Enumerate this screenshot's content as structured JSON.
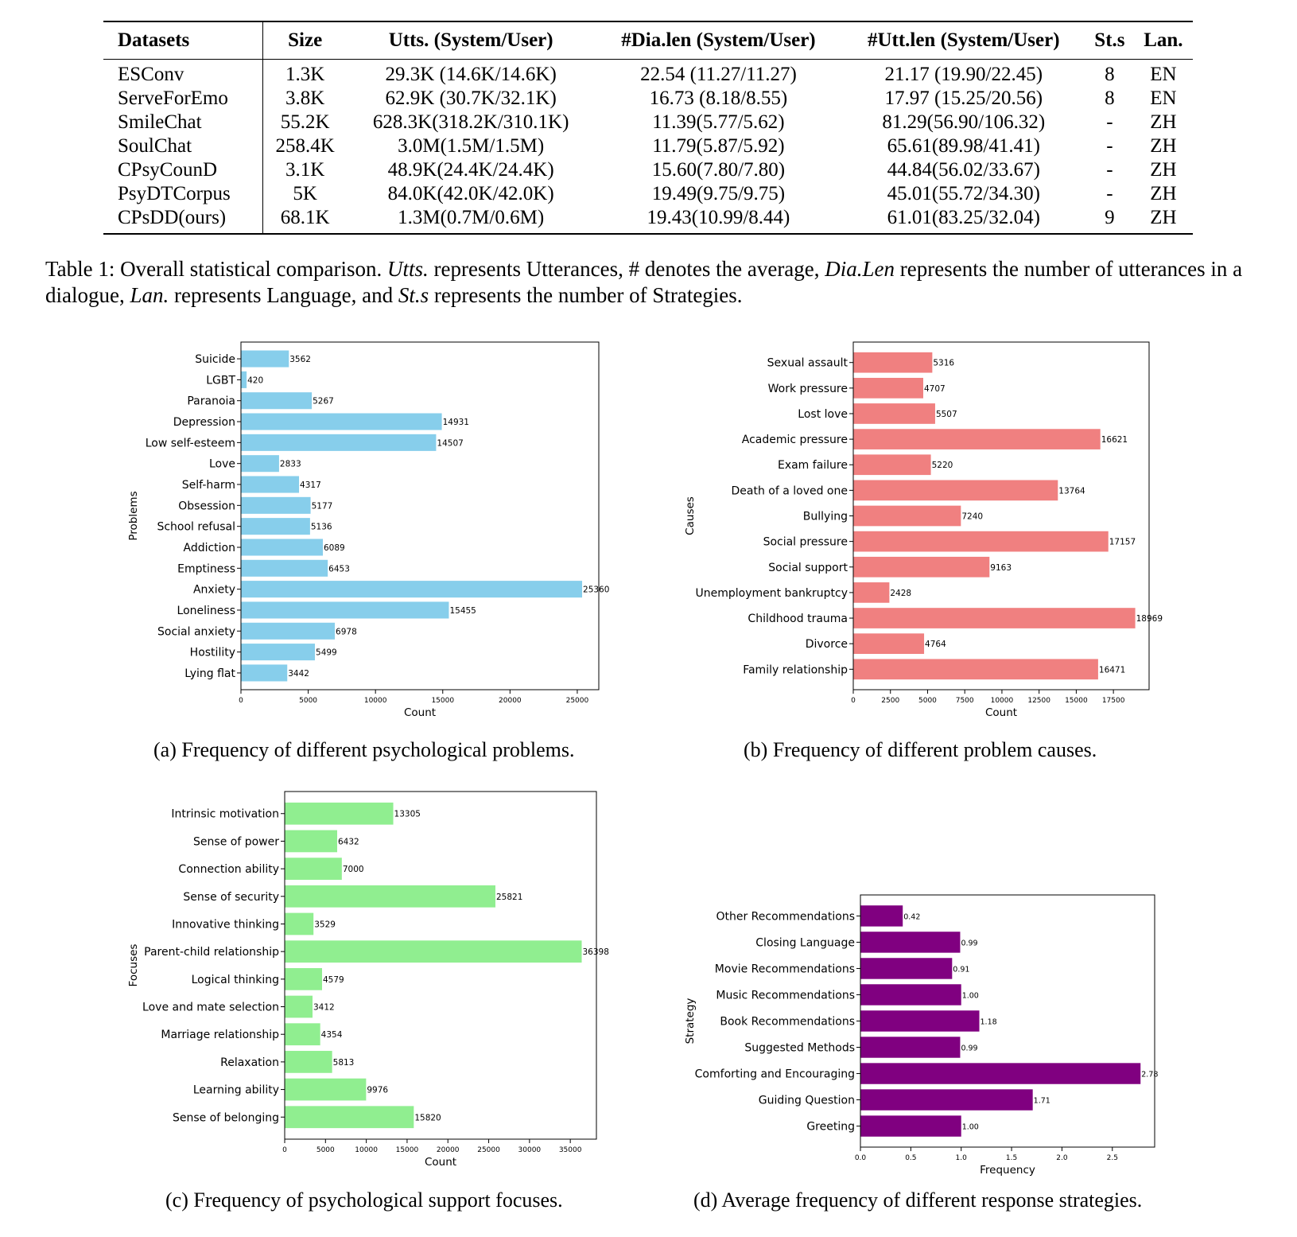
{
  "table": {
    "headers": [
      "Datasets",
      "Size",
      "Utts. (System/User)",
      "#Dia.len (System/User)",
      "#Utt.len (System/User)",
      "St.s",
      "Lan."
    ],
    "rows": [
      [
        "ESConv",
        "1.3K",
        "29.3K (14.6K/14.6K)",
        "22.54 (11.27/11.27)",
        "21.17 (19.90/22.45)",
        "8",
        "EN"
      ],
      [
        "ServeForEmo",
        "3.8K",
        "62.9K (30.7K/32.1K)",
        "16.73 (8.18/8.55)",
        "17.97 (15.25/20.56)",
        "8",
        "EN"
      ],
      [
        "SmileChat",
        "55.2K",
        "628.3K(318.2K/310.1K)",
        "11.39(5.77/5.62)",
        "81.29(56.90/106.32)",
        "-",
        "ZH"
      ],
      [
        "SoulChat",
        "258.4K",
        "3.0M(1.5M/1.5M)",
        "11.79(5.87/5.92)",
        "65.61(89.98/41.41)",
        "-",
        "ZH"
      ],
      [
        "CPsyCounD",
        "3.1K",
        "48.9K(24.4K/24.4K)",
        "15.60(7.80/7.80)",
        "44.84(56.02/33.67)",
        "-",
        "ZH"
      ],
      [
        "PsyDTCorpus",
        "5K",
        "84.0K(42.0K/42.0K)",
        "19.49(9.75/9.75)",
        "45.01(55.72/34.30)",
        "-",
        "ZH"
      ],
      [
        "CPsDD(ours)",
        "68.1K",
        "1.3M(0.7M/0.6M)",
        "19.43(10.99/8.44)",
        "61.01(83.25/32.04)",
        "9",
        "ZH"
      ]
    ]
  },
  "caption": {
    "label": "Table 1: Overall statistical comparison.",
    "t1": "Utts.",
    "s1": " represents Utterances, # denotes the average, ",
    "t2": "Dia.Len",
    "s2": " represents the number of utterances in a dialogue, ",
    "t3": "Lan.",
    "s3": " represents Language, and ",
    "t4": "St.s",
    "s4": " represents the number of Strategies."
  },
  "subcaptions": {
    "a": "(a) Frequency of different psychological problems.",
    "b": "(b) Frequency of different problem causes.",
    "c": "(c) Frequency of psychological support focuses.",
    "d": "(d) Average frequency of different response strategies."
  },
  "chart_data": [
    {
      "id": "a",
      "type": "bar",
      "orientation": "horizontal",
      "color": "#87ceeb",
      "xlabel": "Count",
      "ylabel": "Problems",
      "xlim": [
        0,
        26600
      ],
      "xticks": [
        0,
        5000,
        10000,
        15000,
        20000,
        25000
      ],
      "categories": [
        "Suicide",
        "LGBT",
        "Paranoia",
        "Depression",
        "Low self-esteem",
        "Love",
        "Self-harm",
        "Obsession",
        "School refusal",
        "Addiction",
        "Emptiness",
        "Anxiety",
        "Loneliness",
        "Social anxiety",
        "Hostility",
        "Lying flat"
      ],
      "values": [
        3562,
        420,
        5267,
        14931,
        14507,
        2833,
        4317,
        5177,
        5136,
        6089,
        6453,
        25360,
        15455,
        6978,
        5499,
        3442
      ],
      "value_labels": [
        "3562",
        "420",
        "5267",
        "14931",
        "14507",
        "2833",
        "4317",
        "5177",
        "5136",
        "6089",
        "6453",
        "25360",
        "15455",
        "6978",
        "5499",
        "3442"
      ]
    },
    {
      "id": "b",
      "type": "bar",
      "orientation": "horizontal",
      "color": "#f08080",
      "xlabel": "Count",
      "ylabel": "Causes",
      "xlim": [
        0,
        19900
      ],
      "xticks": [
        0,
        2500,
        5000,
        7500,
        10000,
        12500,
        15000,
        17500
      ],
      "categories": [
        "Sexual assault",
        "Work pressure",
        "Lost love",
        "Academic pressure",
        "Exam failure",
        "Death of a loved one",
        "Bullying",
        "Social pressure",
        "Social support",
        "Unemployment bankruptcy",
        "Childhood trauma",
        "Divorce",
        "Family relationship"
      ],
      "values": [
        5316,
        4707,
        5507,
        16621,
        5220,
        13764,
        7240,
        17157,
        9163,
        2428,
        18969,
        4764,
        16471
      ],
      "value_labels": [
        "5316",
        "4707",
        "5507",
        "16621",
        "5220",
        "13764",
        "7240",
        "17157",
        "9163",
        "2428",
        "18969",
        "4764",
        "16471"
      ]
    },
    {
      "id": "c",
      "type": "bar",
      "orientation": "horizontal",
      "color": "#90ee90",
      "xlabel": "Count",
      "ylabel": "Focuses",
      "xlim": [
        0,
        38200
      ],
      "xticks": [
        0,
        5000,
        10000,
        15000,
        20000,
        25000,
        30000,
        35000
      ],
      "categories": [
        "Intrinsic motivation",
        "Sense of power",
        "Connection ability",
        "Sense of security",
        "Innovative thinking",
        "Parent-child relationship",
        "Logical thinking",
        "Love and mate selection",
        "Marriage relationship",
        "Relaxation",
        "Learning ability",
        "Sense of belonging"
      ],
      "values": [
        13305,
        6432,
        7000,
        25821,
        3529,
        36398,
        4579,
        3412,
        4354,
        5813,
        9976,
        15820
      ],
      "value_labels": [
        "13305",
        "6432",
        "7000",
        "25821",
        "3529",
        "36398",
        "4579",
        "3412",
        "4354",
        "5813",
        "9976",
        "15820"
      ]
    },
    {
      "id": "d",
      "type": "bar",
      "orientation": "horizontal",
      "color": "#800080",
      "xlabel": "Frequency",
      "ylabel": "Strategy",
      "xlim": [
        0,
        2.92
      ],
      "xticks": [
        0.0,
        0.5,
        1.0,
        1.5,
        2.0,
        2.5
      ],
      "xtick_labels": [
        "0.0",
        "0.5",
        "1.0",
        "1.5",
        "2.0",
        "2.5"
      ],
      "categories": [
        "Other Recommendations",
        "Closing Language",
        "Movie Recommendations",
        "Music Recommendations",
        "Book Recommendations",
        "Suggested Methods",
        "Comforting and Encouraging",
        "Guiding Question",
        "Greeting"
      ],
      "values": [
        0.42,
        0.99,
        0.91,
        1.0,
        1.18,
        0.99,
        2.78,
        1.71,
        1.0
      ],
      "value_labels": [
        "0.42",
        "0.99",
        "0.91",
        "1.00",
        "1.18",
        "0.99",
        "2.78",
        "1.71",
        "1.00"
      ]
    }
  ]
}
